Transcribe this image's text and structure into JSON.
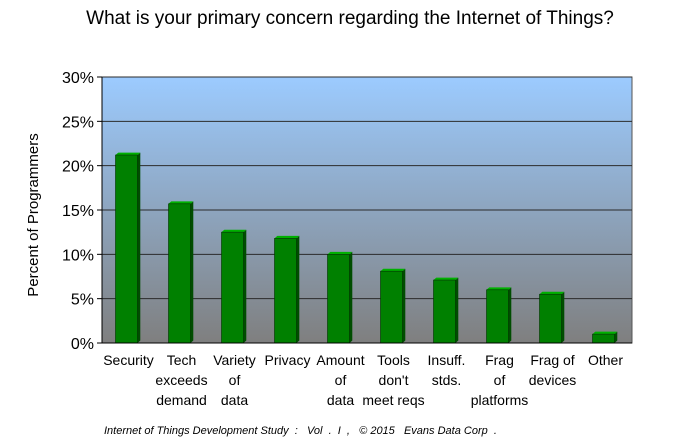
{
  "chart_data": {
    "type": "bar",
    "title": "What is your primary concern regarding the Internet of Things?",
    "ylabel": "Percent of Programmers",
    "xlabel": "",
    "ylim": [
      0,
      30
    ],
    "yticks": [
      "0%",
      "5%",
      "10%",
      "15%",
      "20%",
      "25%",
      "30%"
    ],
    "categories": [
      "Security",
      "Tech exceeds demand",
      "Variety of data",
      "Privacy",
      "Amount of data",
      "Tools don't meet reqs",
      "Insuff. stds.",
      "Frag of platforms",
      "Frag of devices",
      "Other"
    ],
    "category_lines": [
      [
        "Security"
      ],
      [
        "Tech",
        "exceeds",
        "demand"
      ],
      [
        "Variety",
        "of",
        "data"
      ],
      [
        "Privacy"
      ],
      [
        "Amount",
        "of",
        "data"
      ],
      [
        "Tools",
        "don't",
        "meet reqs"
      ],
      [
        "Insuff.",
        "stds."
      ],
      [
        "Frag",
        "of",
        "platforms"
      ],
      [
        "Frag of",
        "devices"
      ],
      [
        "Other"
      ]
    ],
    "values": [
      21.2,
      15.7,
      12.5,
      11.8,
      10.0,
      8.1,
      7.1,
      6.0,
      5.5,
      1.0
    ],
    "grid": true,
    "legend": "none",
    "colors": {
      "bar_front": "#008000",
      "bar_side": "#004d00",
      "bar_top": "#00b000",
      "plot_top": "#9ccbff",
      "plot_bottom": "#7f7f7f",
      "gridline": "#2b2b2b"
    }
  },
  "footer": "Internet of Things Development Study  :   Vol  .  I  ,   © 2015   Evans Data Corp  ."
}
